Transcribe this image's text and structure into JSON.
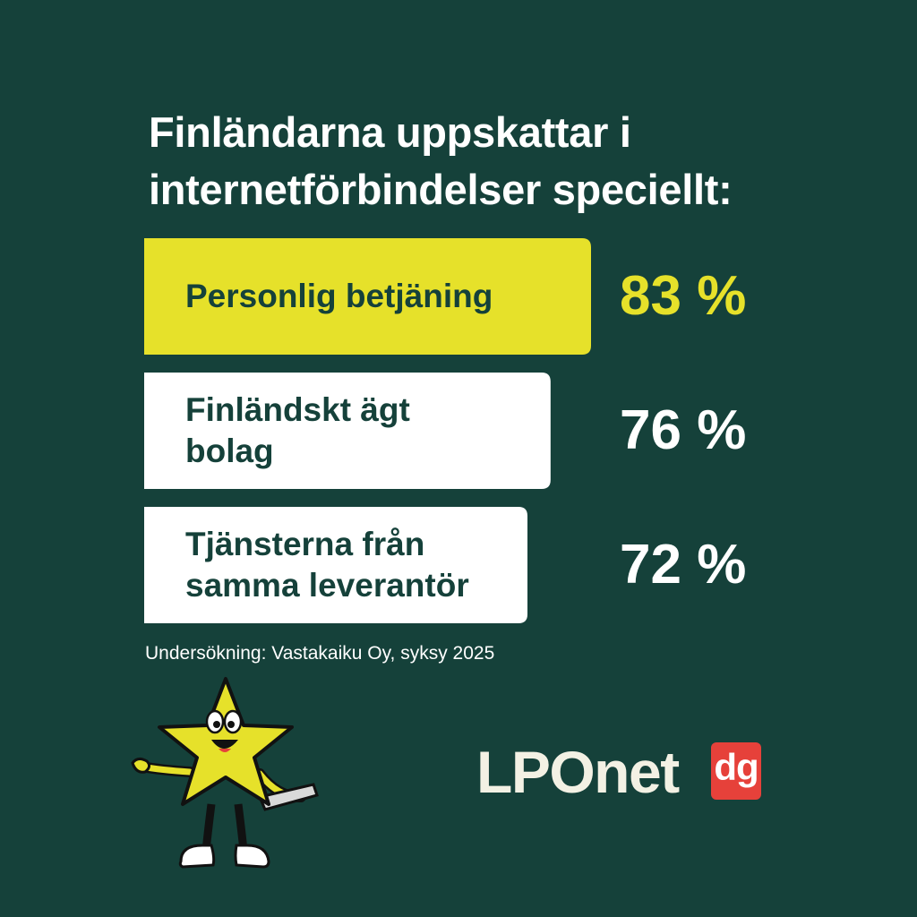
{
  "title_lines": [
    "Finländarna uppskattar i",
    "internetförbindelser speciellt:"
  ],
  "source": "Undersökning: Vastakaiku Oy, syksy 2025",
  "logo": {
    "name": "LPOnet",
    "badge": "dg"
  },
  "colors": {
    "background": "#15413a",
    "highlight": "#e6e12a",
    "bar": "#ffffff",
    "text_dark": "#15413a",
    "badge": "#e6413a"
  },
  "chart_data": {
    "type": "bar",
    "orientation": "horizontal",
    "title": "Finländarna uppskattar i internetförbindelser speciellt:",
    "categories": [
      [
        "Personlig betjäning"
      ],
      [
        "Finländskt ägt",
        "bolag"
      ],
      [
        "Tjänsterna från",
        "samma leverantör"
      ]
    ],
    "values": [
      83,
      76,
      72
    ],
    "value_labels": [
      "83 %",
      "76 %",
      "72 %"
    ],
    "highlight_index": 0
  }
}
